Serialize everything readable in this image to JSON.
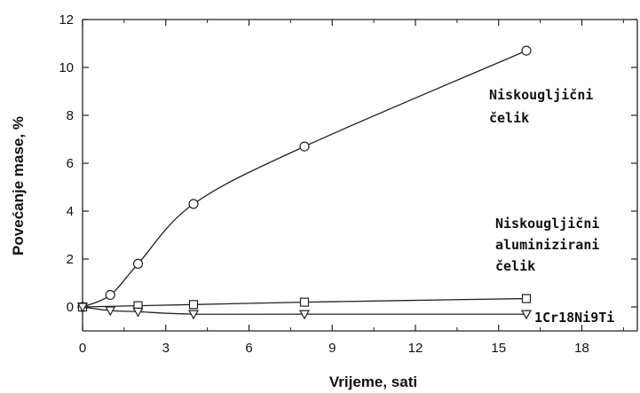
{
  "chart_data": {
    "type": "line",
    "xlabel": "Vrijeme, sati",
    "ylabel": "Povećanje mase, %",
    "xlim": [
      0,
      20
    ],
    "ylim": [
      -1,
      12
    ],
    "xticks": [
      0,
      3,
      6,
      9,
      12,
      15,
      18
    ],
    "yticks": [
      0,
      2,
      4,
      6,
      8,
      10,
      12
    ],
    "grid": false,
    "series": [
      {
        "name": "Niskougljični čelik",
        "marker": "circle",
        "x": [
          0,
          1,
          2,
          4,
          8,
          16
        ],
        "y": [
          0,
          0.5,
          1.8,
          4.3,
          6.7,
          10.7
        ]
      },
      {
        "name": "Niskougljični aluminizirani čelik",
        "marker": "square",
        "x": [
          0,
          2,
          4,
          8,
          16
        ],
        "y": [
          0,
          0.05,
          0.1,
          0.2,
          0.35
        ]
      },
      {
        "name": "1Cr18Ni9Ti",
        "marker": "triangle-down",
        "x": [
          0,
          1,
          2,
          4,
          8,
          16
        ],
        "y": [
          0,
          -0.15,
          -0.2,
          -0.3,
          -0.3,
          -0.3
        ]
      }
    ],
    "annotations": [
      {
        "lines": [
          "Niskougljični",
          "čelik"
        ],
        "series": 0
      },
      {
        "lines": [
          "Niskougljični",
          "aluminizirani",
          "čelik"
        ],
        "series": 1
      },
      {
        "lines": [
          "1Cr18Ni9Ti"
        ],
        "series": 2
      }
    ]
  }
}
